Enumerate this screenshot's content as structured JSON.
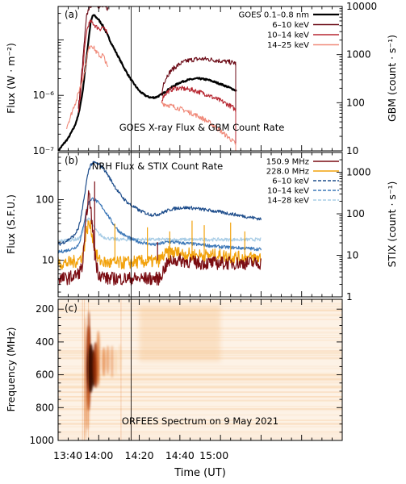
{
  "chart_data": [
    {
      "panel": "(a)",
      "type": "line",
      "annotation": "GOES X-ray Flux & GBM Count Rate",
      "ylabel_left": "Flux (W · m⁻²)",
      "ylabel_right": "GBM (count · s⁻¹)",
      "y_left_scale": "log",
      "y_left_lim": [
        1e-07,
        4e-05
      ],
      "y_left_ticks": [
        {
          "value": 1e-07,
          "label": "10⁻⁷"
        },
        {
          "value": 1e-06,
          "label": "10⁻⁶"
        }
      ],
      "y_right_scale": "log",
      "y_right_lim": [
        10,
        10000
      ],
      "y_right_ticks": [
        {
          "value": 10,
          "label": "10"
        },
        {
          "value": 100,
          "label": "100"
        },
        {
          "value": 1000,
          "label": "1000"
        },
        {
          "value": 10000,
          "label": "10000"
        }
      ],
      "legend_position": "top-right",
      "series": [
        {
          "name": "GOES 0.1–0.8 nm",
          "color": "#000000",
          "axis": "left",
          "x": [
            40,
            45,
            48,
            50,
            52,
            53.5,
            55,
            56,
            57,
            57.5,
            58,
            59,
            60,
            62,
            64,
            66,
            68,
            70,
            72,
            74,
            76,
            78,
            80,
            82,
            84,
            86,
            88,
            90,
            92,
            94,
            96,
            98,
            100,
            102,
            104,
            106,
            108,
            110,
            112,
            114,
            116,
            118,
            120,
            122,
            124,
            126,
            128
          ],
          "y": [
            1e-07,
            1.7e-07,
            2.7e-07,
            4.4e-07,
            1.1e-06,
            3.3e-06,
            1e-05,
            2e-05,
            2.7e-05,
            2.8e-05,
            2.7e-05,
            2.5e-05,
            2.3e-05,
            1.8e-05,
            1.3e-05,
            9e-06,
            6.5e-06,
            4.7e-06,
            3.4e-06,
            2.5e-06,
            1.9e-06,
            1.5e-06,
            1.2e-06,
            1.05e-06,
            9.5e-07,
            9.1e-07,
            9.2e-07,
            9.9e-07,
            1.1e-06,
            1.25e-06,
            1.4e-06,
            1.55e-06,
            1.7e-06,
            1.8e-06,
            1.9e-06,
            1.95e-06,
            2e-06,
            2e-06,
            1.95e-06,
            1.9e-06,
            1.8e-06,
            1.7e-06,
            1.6e-06,
            1.5e-06,
            1.4e-06,
            1.3e-06,
            1.2e-06
          ]
        },
        {
          "name": "6–10 keV",
          "color": "#6b0a16",
          "axis": "right",
          "x": [
            50,
            51,
            52,
            53,
            54,
            55,
            56,
            57,
            58,
            59,
            60,
            61,
            62,
            63,
            64,
            64.6
          ],
          "y": [
            80,
            200,
            600,
            2000,
            6000,
            9000,
            10500,
            11000,
            11200,
            10800,
            10200,
            9800,
            10000,
            9700,
            9300,
            9000
          ],
          "x2": [
            91,
            92,
            94,
            96,
            98,
            100,
            102,
            104,
            106,
            108,
            110,
            112,
            114,
            116,
            118,
            120,
            122,
            124,
            126,
            127.5
          ],
          "y2": [
            140,
            260,
            380,
            480,
            560,
            640,
            700,
            750,
            780,
            800,
            810,
            810,
            800,
            780,
            760,
            740,
            720,
            700,
            680,
            660
          ]
        },
        {
          "name": "10–14 keV",
          "color": "#b72630",
          "axis": "right",
          "x": [
            50,
            51,
            52,
            53,
            54,
            55,
            56,
            57,
            58,
            59,
            60,
            61,
            62,
            63,
            64,
            64.6
          ],
          "y": [
            60,
            150,
            400,
            1200,
            3000,
            4200,
            4800,
            4600,
            4100,
            3700,
            3600,
            3400,
            3800,
            3200,
            2900,
            2700
          ],
          "x2": [
            91,
            92,
            94,
            96,
            98,
            100,
            102,
            104,
            106,
            108,
            110,
            112,
            114,
            116,
            118,
            120,
            122,
            124,
            126,
            127.5
          ],
          "y2": [
            110,
            140,
            170,
            190,
            200,
            200,
            195,
            190,
            185,
            175,
            165,
            155,
            145,
            130,
            120,
            110,
            100,
            90,
            80,
            70
          ]
        },
        {
          "name": "14–25 keV",
          "color": "#f08a7a",
          "axis": "right",
          "x": [
            44,
            46,
            48,
            49,
            50,
            51,
            52,
            53,
            54,
            55,
            56,
            57,
            58,
            59,
            60,
            61,
            62,
            63,
            64,
            64.6
          ],
          "y": [
            30,
            50,
            90,
            110,
            160,
            220,
            300,
            420,
            800,
            1300,
            1600,
            1500,
            1300,
            1100,
            1000,
            900,
            1000,
            800,
            600,
            500
          ],
          "x2": [
            91,
            92,
            94,
            96,
            98,
            100,
            102,
            104,
            106,
            108,
            110,
            112,
            114,
            116,
            118,
            120,
            122,
            124,
            126,
            127.5
          ],
          "y2": [
            100,
            95,
            90,
            85,
            80,
            75,
            70,
            65,
            60,
            55,
            50,
            45,
            40,
            35,
            30,
            26,
            22,
            19,
            16,
            14
          ]
        }
      ]
    },
    {
      "panel": "(b)",
      "type": "line",
      "annotation": "NRH Flux & STIX Count Rate",
      "ylabel_left": "Flux (S.F.U.)",
      "ylabel_right": "STIX (count · s⁻¹)",
      "y_left_scale": "log",
      "y_left_lim": [
        2.5,
        600
      ],
      "y_left_ticks": [
        {
          "value": 10,
          "label": "10"
        },
        {
          "value": 100,
          "label": "100"
        }
      ],
      "y_right_scale": "log",
      "y_right_lim": [
        1,
        3000
      ],
      "y_right_ticks": [
        {
          "value": 1,
          "label": "1"
        },
        {
          "value": 10,
          "label": "10"
        },
        {
          "value": 100,
          "label": "100"
        },
        {
          "value": 1000,
          "label": "1000"
        }
      ],
      "legend_position": "top-right",
      "series": [
        {
          "name": "150.9 MHz",
          "color": "#7a0c12",
          "axis": "left",
          "x": [
            40,
            44,
            48,
            50,
            52,
            53,
            54,
            55,
            56,
            57,
            58,
            59,
            60,
            62,
            64,
            70,
            80,
            86,
            90,
            92,
            94,
            96,
            98,
            100,
            105,
            110,
            115,
            120,
            125,
            130,
            135,
            140
          ],
          "y": [
            5,
            5,
            5.5,
            6,
            8,
            20,
            60,
            120,
            80,
            30,
            15,
            8,
            6,
            5.5,
            5,
            5,
            5,
            5,
            5,
            7,
            9,
            10,
            10,
            10,
            9.5,
            9,
            9,
            9,
            9,
            9,
            9,
            9
          ]
        },
        {
          "name": "228.0 MHz",
          "color": "#f2a20c",
          "axis": "left",
          "x": [
            40,
            44,
            48,
            50,
            52,
            53,
            54,
            55,
            56,
            57,
            58,
            59,
            60,
            62,
            64,
            70,
            80,
            86,
            90,
            92,
            94,
            96,
            98,
            100,
            105,
            110,
            115,
            120,
            125,
            130,
            135,
            140
          ],
          "y": [
            9,
            9,
            9.5,
            10,
            12,
            18,
            30,
            40,
            35,
            25,
            16,
            12,
            10,
            9.5,
            9,
            9,
            9.5,
            9.5,
            10,
            12,
            13,
            13.5,
            13.5,
            13,
            12.5,
            12,
            12,
            12,
            11.5,
            11,
            11,
            11
          ]
        },
        {
          "name": "6–10 keV",
          "color": "#1f4e8c",
          "axis": "right",
          "dashed": true,
          "x": [
            40,
            44,
            48,
            50,
            51,
            52,
            53,
            54,
            55,
            56,
            57,
            58,
            59,
            60,
            62,
            64,
            66,
            68,
            70,
            72,
            74,
            76,
            78,
            80,
            82,
            84,
            86,
            88,
            90,
            92,
            94,
            96,
            100,
            105,
            110,
            115,
            120,
            125,
            130,
            135,
            140
          ],
          "y": [
            18,
            22,
            30,
            45,
            70,
            130,
            280,
            600,
            1100,
            1500,
            1650,
            1700,
            1650,
            1550,
            1300,
            950,
            650,
            450,
            320,
            240,
            190,
            160,
            140,
            120,
            110,
            100,
            95,
            95,
            100,
            110,
            120,
            130,
            140,
            140,
            130,
            120,
            110,
            100,
            90,
            82,
            75
          ]
        },
        {
          "name": "10–14 keV",
          "color": "#3d78b8",
          "axis": "right",
          "dashed": true,
          "x": [
            40,
            44,
            48,
            50,
            51,
            52,
            53,
            54,
            55,
            56,
            57,
            58,
            59,
            60,
            62,
            64,
            66,
            68,
            70,
            72,
            74,
            76,
            78,
            80,
            82,
            84,
            86,
            88,
            90,
            92,
            94,
            96,
            100,
            105,
            110,
            115,
            120,
            125,
            130,
            135,
            140
          ],
          "y": [
            12,
            13,
            15,
            18,
            25,
            40,
            70,
            120,
            180,
            220,
            230,
            220,
            200,
            180,
            140,
            100,
            70,
            50,
            38,
            32,
            28,
            25,
            23,
            21,
            20,
            19,
            18.5,
            18,
            19,
            20,
            21,
            21,
            20,
            19,
            18,
            17,
            16,
            15.5,
            15,
            14.5,
            14
          ]
        },
        {
          "name": "14–28 keV",
          "color": "#a9cde6",
          "axis": "right",
          "dashed": true,
          "x": [
            40,
            44,
            48,
            50,
            51,
            52,
            53,
            54,
            55,
            56,
            57,
            58,
            59,
            60,
            62,
            64,
            66,
            68,
            70,
            75,
            80,
            86,
            90,
            95,
            100,
            105,
            110,
            115,
            120,
            125,
            130,
            135,
            140
          ],
          "y": [
            22,
            23,
            24,
            25,
            28,
            35,
            50,
            70,
            80,
            70,
            55,
            45,
            38,
            33,
            28,
            26,
            25,
            24.5,
            24,
            24,
            24,
            24,
            24,
            24,
            24,
            24,
            24,
            24,
            24,
            24,
            24,
            24,
            24
          ]
        }
      ]
    },
    {
      "panel": "(c)",
      "type": "heatmap",
      "annotation": "ORFEES Spectrum on 9 May 2021",
      "ylabel": "Frequency (MHz)",
      "y_inverted": true,
      "ylim": [
        140,
        1000
      ],
      "y_ticks": [
        200,
        400,
        600,
        800,
        1000
      ],
      "colormap": [
        "#fdf2e6",
        "#f6c187",
        "#e07227",
        "#9c2a05",
        "#3a0800"
      ]
    }
  ],
  "x_axis": {
    "label": "Time (UT)",
    "lim": [
      40,
      180
    ],
    "ticks": [
      {
        "value": 40,
        "label": "13:40"
      },
      {
        "value": 60,
        "label": "14:00"
      },
      {
        "value": 80,
        "label": "14:20"
      },
      {
        "value": 100,
        "label": "14:40"
      },
      {
        "value": 120,
        "label": "15:00"
      }
    ],
    "marker_line": 76
  }
}
